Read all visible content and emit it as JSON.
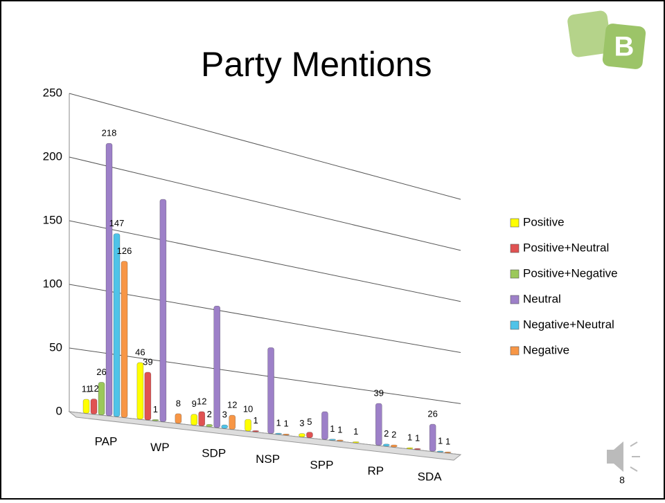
{
  "chart_data": {
    "type": "bar",
    "title": "Party Mentions",
    "categories": [
      "PAP",
      "WP",
      "SDP",
      "NSP",
      "SPP",
      "RP",
      "SDA"
    ],
    "series": [
      {
        "name": "Positive",
        "color": "#ffff00",
        "values": [
          11,
          46,
          9,
          10,
          3,
          1,
          1
        ],
        "value_labels": [
          "11",
          "46",
          "9",
          "10",
          "3",
          "1",
          "1"
        ]
      },
      {
        "name": "Positive+Neutral",
        "color": "#e05252",
        "values": [
          12,
          39,
          12,
          1,
          5,
          0,
          1
        ],
        "value_labels": [
          "12",
          "39",
          "12",
          "1",
          "5",
          null,
          "1"
        ]
      },
      {
        "name": "Positive+Negative",
        "color": "#9bc85a",
        "values": [
          26,
          1,
          2,
          0,
          0,
          0,
          0
        ],
        "value_labels": [
          "26",
          "1",
          "2",
          null,
          null,
          null,
          null
        ]
      },
      {
        "name": "Neutral",
        "color": "#9d80c8",
        "values": [
          218,
          183,
          103,
          75,
          25,
          39,
          26
        ],
        "value_labels": [
          "218",
          null,
          null,
          null,
          null,
          "39",
          "26"
        ]
      },
      {
        "name": "Negative+Neutral",
        "color": "#4fc3e8",
        "values": [
          147,
          0,
          3,
          1,
          1,
          2,
          1
        ],
        "value_labels": [
          "147",
          null,
          "3",
          "1",
          "1",
          "2",
          "1"
        ]
      },
      {
        "name": "Negative",
        "color": "#f79646",
        "values": [
          126,
          8,
          12,
          1,
          1,
          2,
          1
        ],
        "value_labels": [
          "126",
          "8",
          "12",
          "1",
          "1",
          "2",
          "1"
        ]
      }
    ],
    "ylim": [
      0,
      250
    ],
    "yticks": [
      0,
      50,
      100,
      150,
      200,
      250
    ],
    "grid": true,
    "legend": "right",
    "page_number": "8"
  }
}
